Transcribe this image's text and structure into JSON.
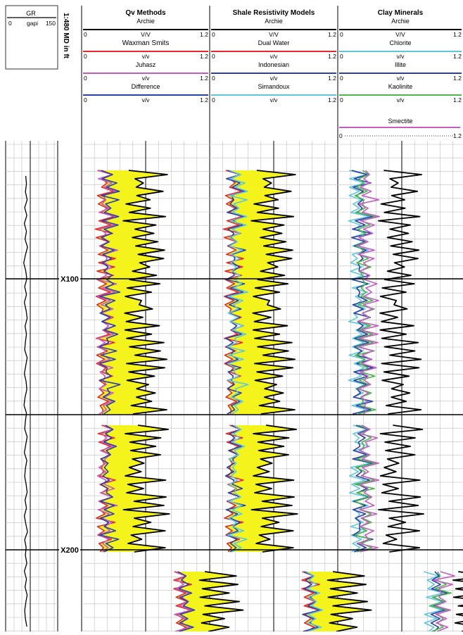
{
  "colors": {
    "archie": "#000000",
    "waxman_smits": "#e8262c",
    "juhasz": "#c55cc4",
    "difference": "#2d3fa8",
    "dual_water": "#e8262c",
    "indonesian": "#2d3fa8",
    "simandoux": "#5cc8e0",
    "chlorite": "#5cc8e0",
    "illite": "#2d3fa8",
    "kaolinite": "#4cb848",
    "smectite": "#c55cc4",
    "fill": "#f4f41c",
    "grid": "#bdbdbd"
  },
  "gr_header": {
    "name": "GR",
    "min": "0",
    "unit": "gapi",
    "max": "150"
  },
  "depth_header": "1:480 MD in ft",
  "depth_markers": [
    "X100",
    "X200"
  ],
  "tracks": [
    {
      "title": "Qv Methods",
      "curves": [
        {
          "name": "Archie",
          "min": "0",
          "unit": "V/V",
          "max": "1.2"
        },
        {
          "name": "Waxman Smits",
          "min": "0",
          "unit": "v/v",
          "max": "1.2"
        },
        {
          "name": "Juhasz",
          "min": "0",
          "unit": "v/v",
          "max": "1.2"
        },
        {
          "name": "Difference",
          "min": "0",
          "unit": "v/v",
          "max": "1.2"
        }
      ]
    },
    {
      "title": "Shale Resistivity Models",
      "curves": [
        {
          "name": "Archie",
          "min": "0",
          "unit": "V/V",
          "max": "1.2"
        },
        {
          "name": "Dual Water",
          "min": "0",
          "unit": "v/v",
          "max": "1.2"
        },
        {
          "name": "Indonesian",
          "min": "0",
          "unit": "v/v",
          "max": "1.2"
        },
        {
          "name": "Simandoux",
          "min": "0",
          "unit": "v/v",
          "max": "1.2"
        }
      ]
    },
    {
      "title": "Clay Minerals",
      "curves": [
        {
          "name": "Archie",
          "min": "0",
          "unit": "V/V",
          "max": "1.2"
        },
        {
          "name": "Chlorite",
          "min": "0",
          "unit": "v/v",
          "max": "1.2"
        },
        {
          "name": "Illite",
          "min": "0",
          "unit": "v/v",
          "max": "1.2"
        },
        {
          "name": "Kaolinite",
          "min": "0",
          "unit": "v/v",
          "max": "1.2"
        },
        {
          "name": "Smectite",
          "min": "0",
          "unit": "",
          "max": "1.2"
        }
      ]
    }
  ],
  "chart_data": {
    "type": "line",
    "y_axis": {
      "label": "1:480 MD in ft",
      "ticks": [
        "X100",
        "X200"
      ],
      "reversed": true
    },
    "x_range": [
      0,
      1.2
    ],
    "grid": true,
    "gr_curve": {
      "name": "GR",
      "range": [
        0,
        150
      ],
      "values": [
        58,
        60,
        57,
        62,
        55,
        61,
        54,
        60,
        56,
        63,
        57,
        52,
        58,
        61,
        55,
        60,
        54,
        59,
        62,
        56,
        60,
        57,
        55,
        62,
        58,
        54,
        59,
        61,
        56,
        53,
        60,
        57,
        55,
        62,
        58,
        54,
        61,
        57,
        55,
        59,
        62,
        56,
        60,
        54,
        58,
        63,
        55,
        59,
        57,
        61,
        54,
        60,
        56,
        62,
        58,
        55,
        57,
        61
      ]
    }
  }
}
